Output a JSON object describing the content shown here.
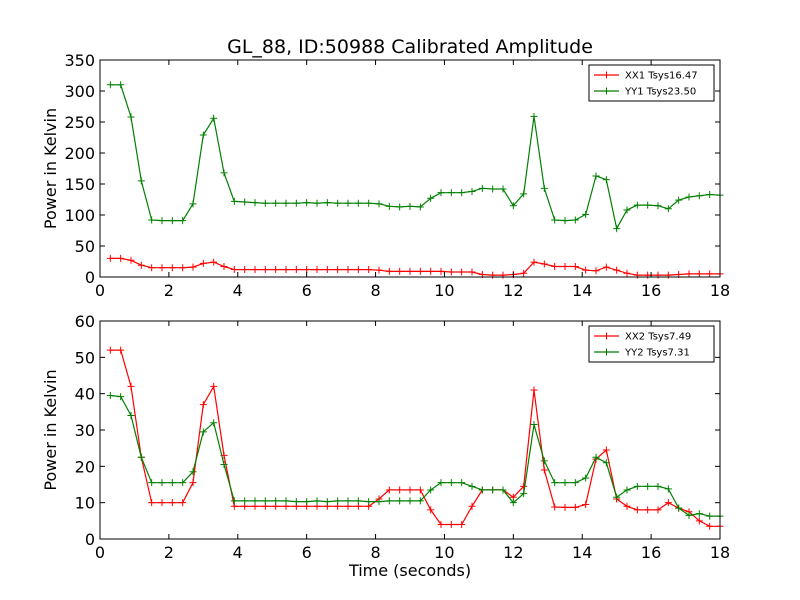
{
  "figure": {
    "title": "GL_88, ID:50988 Calibrated Amplitude",
    "xlabel": "Time (seconds)"
  },
  "chart_data": [
    {
      "type": "line",
      "title": "GL_88, ID:50988 Calibrated Amplitude",
      "xlabel": "",
      "ylabel": "Power in Kelvin",
      "xlim": [
        0,
        18
      ],
      "ylim": [
        0,
        350
      ],
      "xticks": [
        0,
        2,
        4,
        6,
        8,
        10,
        12,
        14,
        16,
        18
      ],
      "yticks": [
        0,
        50,
        100,
        150,
        200,
        250,
        300,
        350
      ],
      "grid": false,
      "legend_position": "top-right",
      "marker": "+",
      "x": [
        0.3,
        0.6,
        0.9,
        1.2,
        1.5,
        1.8,
        2.1,
        2.4,
        2.7,
        3.0,
        3.3,
        3.6,
        3.9,
        4.2,
        4.5,
        4.8,
        5.1,
        5.4,
        5.7,
        6.0,
        6.3,
        6.6,
        6.9,
        7.2,
        7.5,
        7.8,
        8.1,
        8.4,
        8.7,
        9.0,
        9.3,
        9.6,
        9.9,
        10.2,
        10.5,
        10.8,
        11.1,
        11.4,
        11.7,
        12.0,
        12.3,
        12.6,
        12.9,
        13.2,
        13.5,
        13.8,
        14.1,
        14.4,
        14.7,
        15.0,
        15.3,
        15.6,
        15.9,
        16.2,
        16.5,
        16.8,
        17.1,
        17.4,
        17.7,
        18.0
      ],
      "series": [
        {
          "name": "XX1 Tsys16.47",
          "color": "#ff0000",
          "values": [
            30,
            30,
            27,
            19,
            15,
            15,
            15,
            15,
            16,
            22,
            24,
            17,
            12,
            12,
            12,
            12,
            12,
            12,
            12,
            12,
            12,
            12,
            12,
            12,
            12,
            12,
            11,
            9,
            9,
            9,
            9,
            9,
            9,
            8,
            8,
            8,
            4,
            3,
            3,
            4,
            6,
            24,
            21,
            17,
            17,
            17,
            11,
            10,
            16,
            11,
            6,
            3,
            3,
            3,
            3,
            4,
            5,
            5,
            5,
            5
          ]
        },
        {
          "name": "YY1 Tsys23.50",
          "color": "#008000",
          "values": [
            310,
            310,
            258,
            155,
            92,
            91,
            91,
            91,
            118,
            229,
            256,
            168,
            122,
            121,
            120,
            119,
            119,
            119,
            119,
            120,
            119,
            120,
            119,
            119,
            119,
            119,
            118,
            114,
            113,
            114,
            113,
            127,
            136,
            136,
            136,
            138,
            143,
            142,
            142,
            115,
            134,
            259,
            143,
            92,
            91,
            92,
            101,
            163,
            157,
            78,
            108,
            116,
            116,
            115,
            110,
            124,
            129,
            131,
            133,
            132
          ]
        }
      ]
    },
    {
      "type": "line",
      "xlabel": "Time (seconds)",
      "ylabel": "Power in Kelvin",
      "xlim": [
        0,
        18
      ],
      "ylim": [
        0,
        60
      ],
      "xticks": [
        0,
        2,
        4,
        6,
        8,
        10,
        12,
        14,
        16,
        18
      ],
      "yticks": [
        0,
        10,
        20,
        30,
        40,
        50,
        60
      ],
      "grid": false,
      "legend_position": "top-right",
      "marker": "+",
      "x": [
        0.3,
        0.6,
        0.9,
        1.2,
        1.5,
        1.8,
        2.1,
        2.4,
        2.7,
        3.0,
        3.3,
        3.6,
        3.9,
        4.2,
        4.5,
        4.8,
        5.1,
        5.4,
        5.7,
        6.0,
        6.3,
        6.6,
        6.9,
        7.2,
        7.5,
        7.8,
        8.1,
        8.4,
        8.7,
        9.0,
        9.3,
        9.6,
        9.9,
        10.2,
        10.5,
        10.8,
        11.1,
        11.4,
        11.7,
        12.0,
        12.3,
        12.6,
        12.9,
        13.2,
        13.5,
        13.8,
        14.1,
        14.4,
        14.7,
        15.0,
        15.3,
        15.6,
        15.9,
        16.2,
        16.5,
        16.8,
        17.1,
        17.4,
        17.7,
        18.0
      ],
      "series": [
        {
          "name": "XX2 Tsys7.49",
          "color": "#ff0000",
          "values": [
            52,
            52,
            42,
            22.5,
            10,
            10,
            10,
            10,
            15.5,
            37,
            42,
            23,
            9,
            9,
            9,
            9,
            9,
            9,
            9,
            9,
            9,
            9,
            9,
            9,
            9,
            9,
            11,
            13.5,
            13.5,
            13.5,
            13.5,
            8,
            4,
            4,
            4,
            9,
            13.5,
            13.5,
            13.5,
            11.5,
            14.5,
            41,
            19,
            8.8,
            8.7,
            8.7,
            9.5,
            22,
            24.5,
            11,
            9,
            8,
            8,
            8,
            10,
            8.5,
            7.5,
            5,
            3.5,
            3.5
          ]
        },
        {
          "name": "YY2 Tsys7.31",
          "color": "#008000",
          "values": [
            39.5,
            39.2,
            34,
            22.5,
            15.5,
            15.5,
            15.5,
            15.5,
            18.5,
            29.5,
            32,
            20.5,
            10.5,
            10.5,
            10.5,
            10.5,
            10.5,
            10.5,
            10.3,
            10.3,
            10.5,
            10.3,
            10.5,
            10.5,
            10.5,
            10.3,
            10.3,
            10.5,
            10.5,
            10.5,
            10.5,
            13.5,
            15.5,
            15.5,
            15.5,
            14.5,
            13.5,
            13.5,
            13.5,
            10,
            12.5,
            31.5,
            21.5,
            15.5,
            15.5,
            15.5,
            16.8,
            22.5,
            21,
            11.5,
            13.5,
            14.5,
            14.5,
            14.5,
            13.8,
            8.5,
            6.5,
            7,
            6.3,
            6.3
          ]
        }
      ]
    }
  ]
}
